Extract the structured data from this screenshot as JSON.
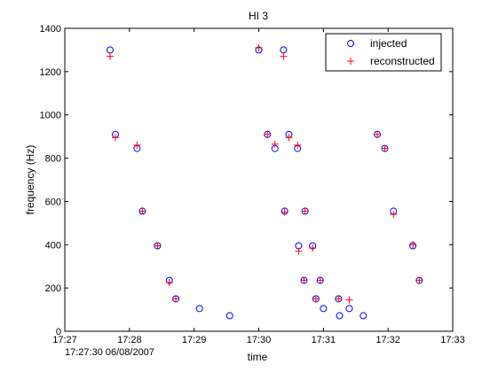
{
  "chart_data": {
    "type": "scatter",
    "title": "HI 3",
    "xlabel": "time",
    "ylabel": "frequency (Hz)",
    "x_origin_label": "17:27:30 06/08/2007",
    "xlim": [
      "17:27:00",
      "17:33:00"
    ],
    "ylim": [
      0,
      1400
    ],
    "x_tick_labels": [
      "17:27",
      "17:28",
      "17:29",
      "17:30",
      "17:31",
      "17:32",
      "17:33"
    ],
    "y_tick_values": [
      0,
      200,
      400,
      600,
      800,
      1000,
      1200,
      1400
    ],
    "grid": false,
    "legend_position": "top-right",
    "series": [
      {
        "name": "injected",
        "marker": "circle",
        "color": "#0000ff",
        "points": [
          [
            "17:27:42",
            1300
          ],
          [
            "17:27:47",
            910
          ],
          [
            "17:28:07",
            845
          ],
          [
            "17:28:12",
            555
          ],
          [
            "17:28:26",
            395
          ],
          [
            "17:28:37",
            235
          ],
          [
            "17:28:43",
            150
          ],
          [
            "17:29:05",
            105
          ],
          [
            "17:29:33",
            72
          ],
          [
            "17:30:00",
            1300
          ],
          [
            "17:30:08",
            910
          ],
          [
            "17:30:15",
            845
          ],
          [
            "17:30:24",
            555
          ],
          [
            "17:30:37",
            395
          ],
          [
            "17:30:42",
            235
          ],
          [
            "17:30:53",
            150
          ],
          [
            "17:31:00",
            105
          ],
          [
            "17:31:15",
            72
          ],
          [
            "17:30:23",
            1300
          ],
          [
            "17:30:28",
            910
          ],
          [
            "17:30:36",
            845
          ],
          [
            "17:30:43",
            555
          ],
          [
            "17:30:50",
            395
          ],
          [
            "17:30:57",
            235
          ],
          [
            "17:31:14",
            150
          ],
          [
            "17:31:24",
            105
          ],
          [
            "17:31:37",
            72
          ],
          [
            "17:31:50",
            910
          ],
          [
            "17:31:57",
            845
          ],
          [
            "17:32:05",
            555
          ],
          [
            "17:32:23",
            395
          ],
          [
            "17:32:29",
            235
          ]
        ]
      },
      {
        "name": "reconstructed",
        "marker": "plus",
        "color": "#ff0000",
        "points": [
          [
            "17:27:42",
            1270
          ],
          [
            "17:27:47",
            895
          ],
          [
            "17:28:07",
            860
          ],
          [
            "17:28:12",
            555
          ],
          [
            "17:28:26",
            395
          ],
          [
            "17:28:37",
            225
          ],
          [
            "17:28:43",
            150
          ],
          [
            "17:30:00",
            1310
          ],
          [
            "17:30:08",
            910
          ],
          [
            "17:30:15",
            865
          ],
          [
            "17:30:24",
            550
          ],
          [
            "17:30:37",
            370
          ],
          [
            "17:30:42",
            235
          ],
          [
            "17:30:53",
            150
          ],
          [
            "17:30:23",
            1270
          ],
          [
            "17:30:28",
            895
          ],
          [
            "17:30:36",
            860
          ],
          [
            "17:30:43",
            555
          ],
          [
            "17:30:50",
            385
          ],
          [
            "17:30:57",
            235
          ],
          [
            "17:31:14",
            150
          ],
          [
            "17:31:24",
            145
          ],
          [
            "17:31:50",
            910
          ],
          [
            "17:31:57",
            845
          ],
          [
            "17:32:05",
            540
          ],
          [
            "17:32:23",
            400
          ],
          [
            "17:32:29",
            235
          ]
        ]
      }
    ]
  }
}
